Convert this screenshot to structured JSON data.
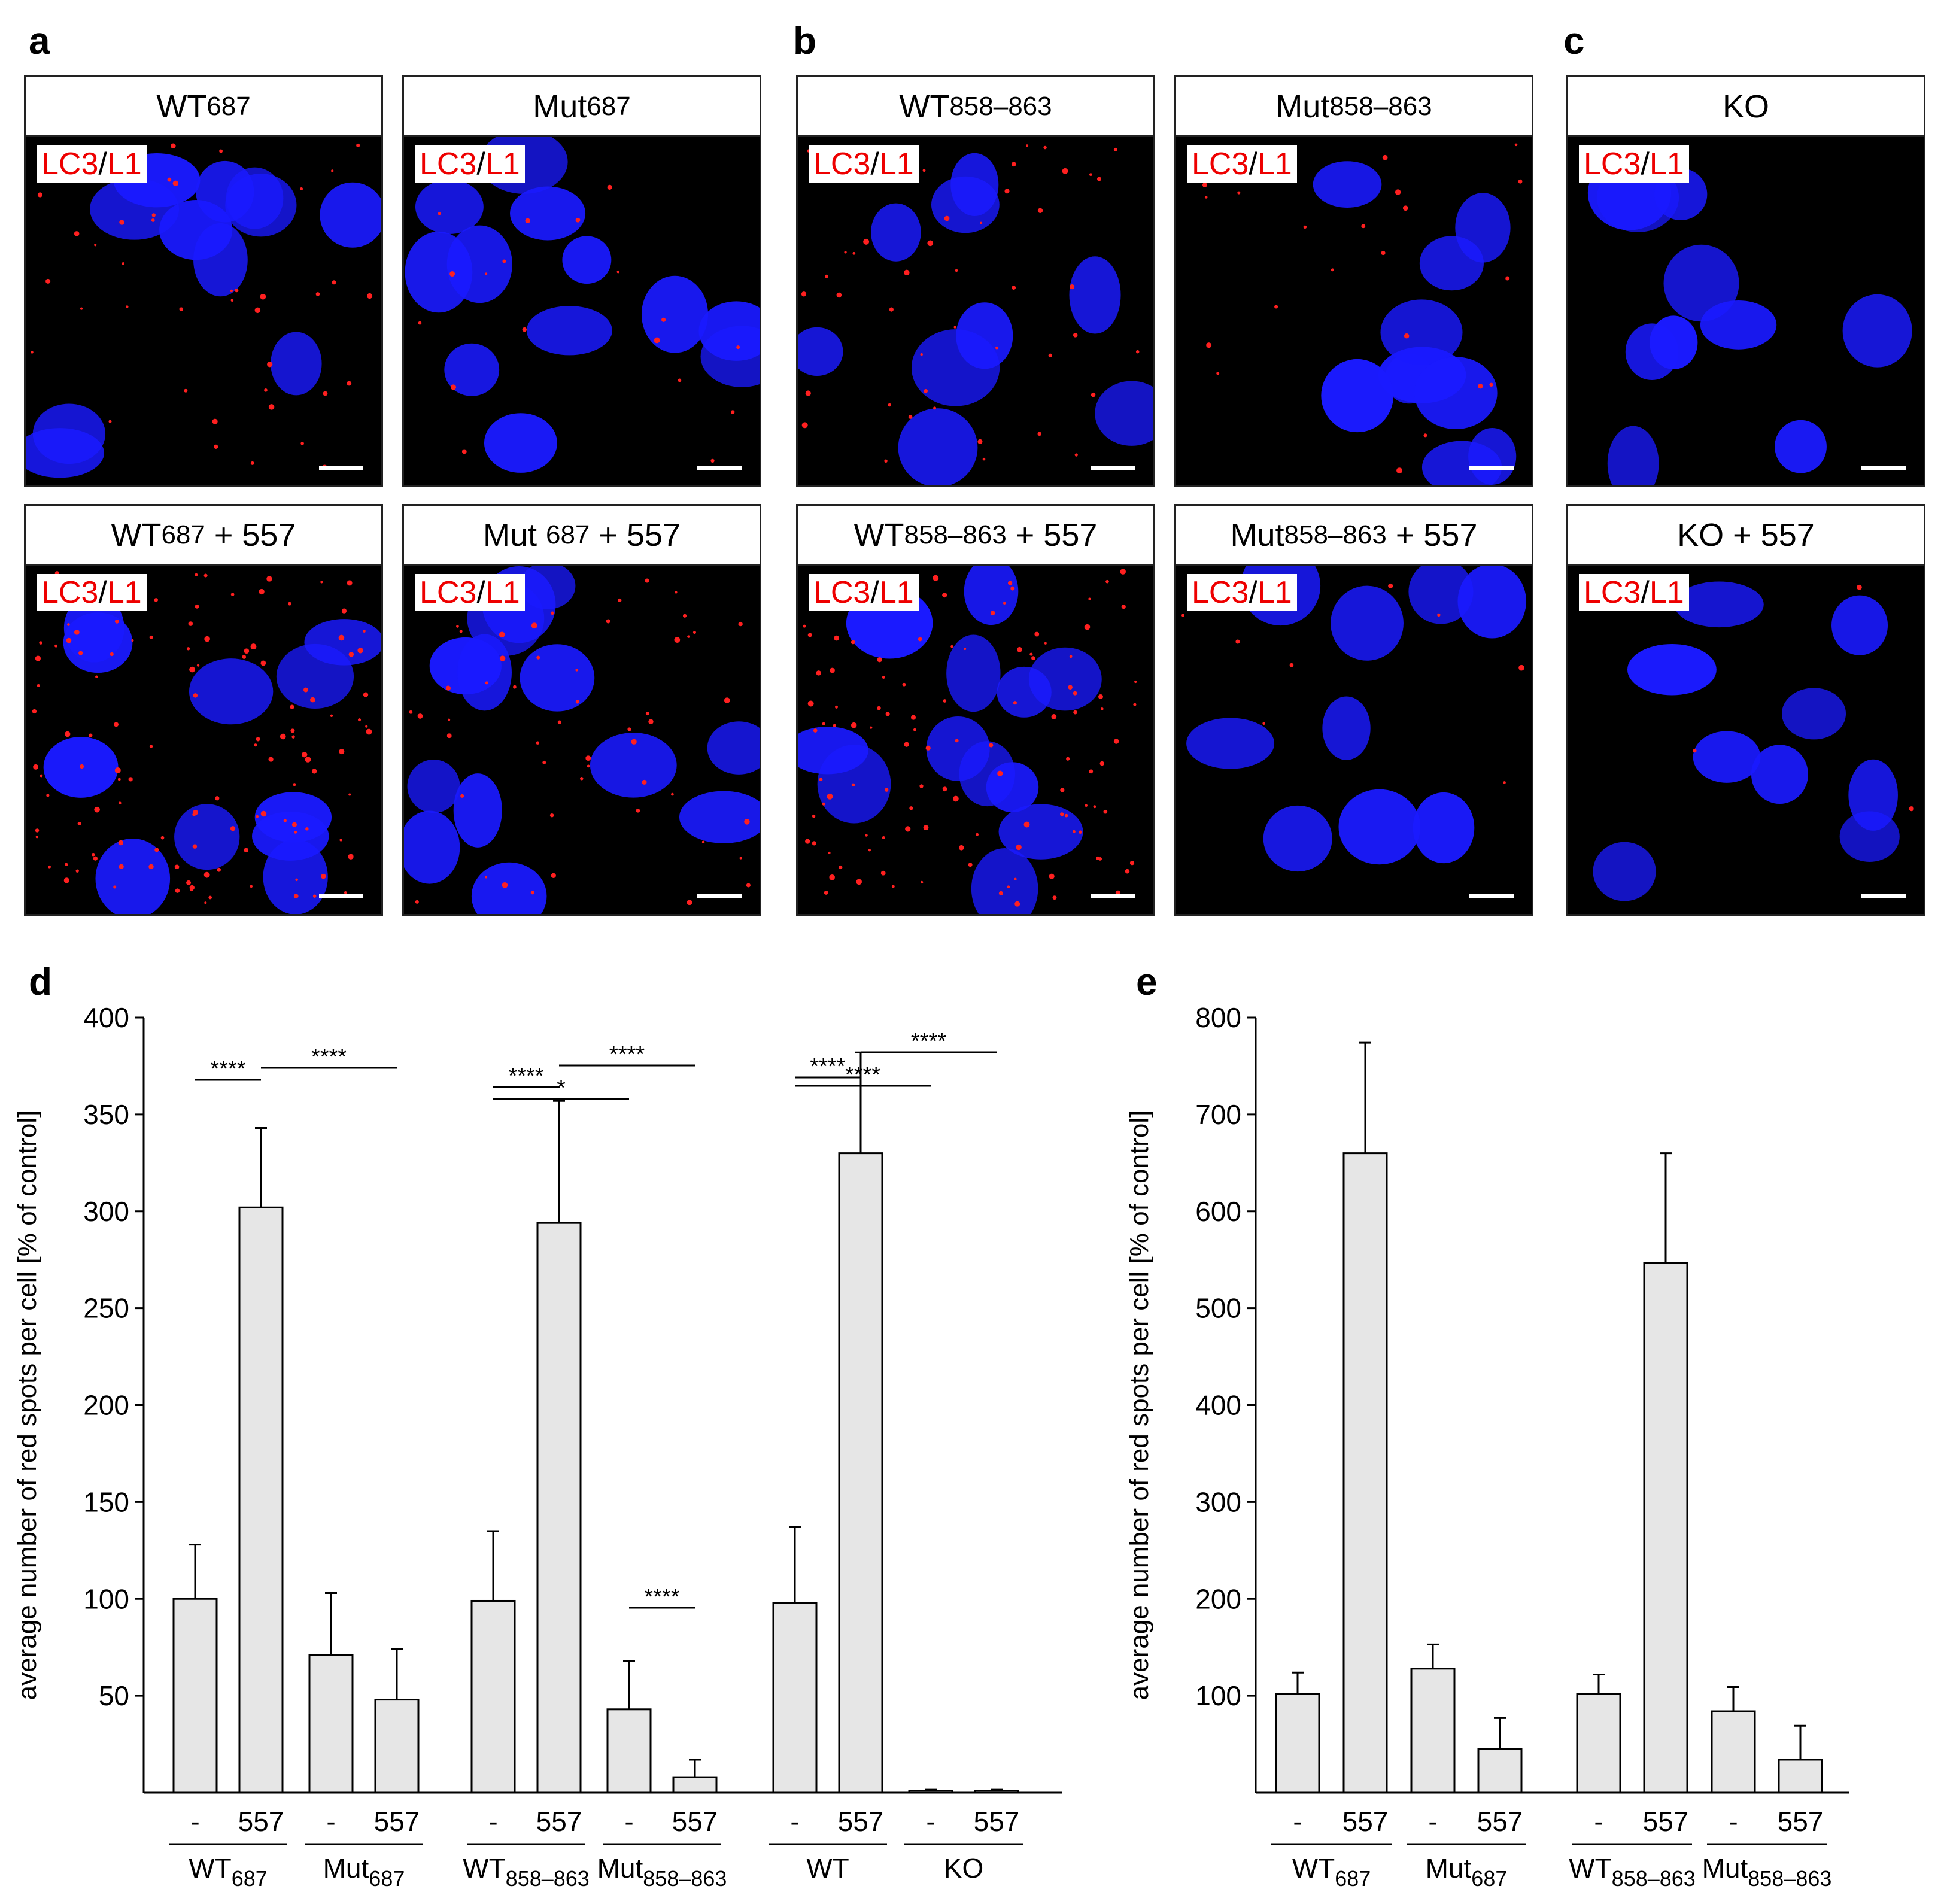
{
  "panel_letters": [
    "a",
    "b",
    "c",
    "d",
    "e"
  ],
  "stain_label": {
    "lc3": "LC3",
    "sep": "/",
    "l1": "L1"
  },
  "image_panels": [
    {
      "base": "WT",
      "sub": "687",
      "suffix": ""
    },
    {
      "base": "Mut",
      "sub": "687",
      "suffix": ""
    },
    {
      "base": "WT",
      "sub": "858–863",
      "suffix": ""
    },
    {
      "base": "Mut",
      "sub": "858–863",
      "suffix": ""
    },
    {
      "base": "KO",
      "sub": "",
      "suffix": ""
    },
    {
      "base": "WT",
      "sub": "687",
      "suffix": " + 557"
    },
    {
      "base": "Mut ",
      "sub": "687",
      "suffix": " + 557"
    },
    {
      "base": "WT",
      "sub": "858–863",
      "suffix": " + 557"
    },
    {
      "base": "Mut",
      "sub": "858–863",
      "suffix": " + 557"
    },
    {
      "base": "KO + 557",
      "sub": "",
      "suffix": ""
    }
  ],
  "colors": {
    "bar_fill": "#e6e6e6",
    "nucleus": "#1a1aff",
    "spot": "#ff2020",
    "stain_red": "#e00000"
  },
  "chart_data": [
    {
      "type": "bar",
      "panel": "d",
      "ylabel": "average number of red spots per cell  [% of control]",
      "ylim": [
        0,
        400
      ],
      "yticks": [
        50,
        100,
        150,
        200,
        250,
        300,
        350,
        400
      ],
      "categories": [
        "-",
        "557",
        "-",
        "557",
        "-",
        "557",
        "-",
        "557",
        "-",
        "557",
        "-",
        "557"
      ],
      "groups": [
        {
          "base": "WT",
          "sub": "687"
        },
        {
          "base": "Mut",
          "sub": "687"
        },
        {
          "base": "WT",
          "sub": "858–863"
        },
        {
          "base": "Mut",
          "sub": "858–863"
        },
        {
          "base": "WT",
          "sub": ""
        },
        {
          "base": "KO",
          "sub": ""
        }
      ],
      "values": [
        100,
        302,
        71,
        48,
        99,
        294,
        43,
        8,
        98,
        330,
        1,
        1
      ],
      "errors": [
        28,
        41,
        32,
        26,
        36,
        63,
        25,
        9,
        39,
        52,
        0.5,
        0.5
      ],
      "significance": [
        {
          "label": "****",
          "from": 0,
          "to": 1
        },
        {
          "label": "****",
          "from": 1,
          "to": 3
        },
        {
          "label": "****",
          "from": 4,
          "to": 5
        },
        {
          "label": "****",
          "from": 5,
          "to": 7
        },
        {
          "label": "*",
          "from": 4,
          "to": 6
        },
        {
          "label": "****",
          "from": 6,
          "to": 7
        },
        {
          "label": "****",
          "from": 8,
          "to": 9
        },
        {
          "label": "****",
          "from": 9,
          "to": 11
        },
        {
          "label": "****",
          "from": 8,
          "to": 10
        }
      ]
    },
    {
      "type": "bar",
      "panel": "e",
      "ylabel": "average number of red spots per cell  [% of control]",
      "ylim": [
        0,
        800
      ],
      "yticks": [
        100,
        200,
        300,
        400,
        500,
        600,
        700,
        800
      ],
      "categories": [
        "-",
        "557",
        "-",
        "557",
        "-",
        "557",
        "-",
        "557"
      ],
      "groups": [
        {
          "base": "WT",
          "sub": "687"
        },
        {
          "base": "Mut",
          "sub": "687"
        },
        {
          "base": "WT",
          "sub": "858–863"
        },
        {
          "base": "Mut",
          "sub": "858–863"
        }
      ],
      "values": [
        102,
        660,
        128,
        45,
        102,
        547,
        84,
        34
      ],
      "errors": [
        22,
        114,
        25,
        32,
        20,
        113,
        25,
        35
      ],
      "significance": []
    }
  ]
}
